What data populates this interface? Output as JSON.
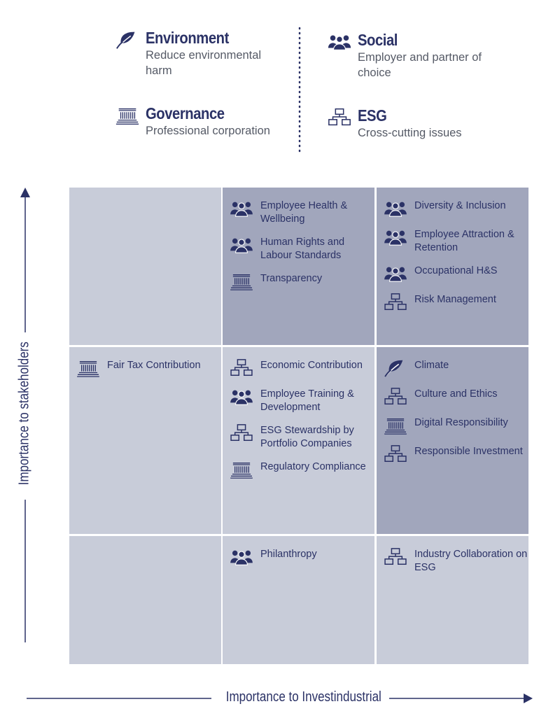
{
  "legend": [
    {
      "title": "Environment",
      "description": "Reduce environmental harm",
      "icon": "leaf"
    },
    {
      "title": "Social",
      "description": "Employer and partner of choice",
      "icon": "people"
    },
    {
      "title": "Governance",
      "description": "Professional corporation",
      "icon": "temple"
    },
    {
      "title": "ESG",
      "description": "Cross-cutting issues",
      "icon": "org"
    }
  ],
  "grid": {
    "rows": [
      [
        {
          "color": "#c8ccd9",
          "items": []
        },
        {
          "color": "#a1a6bc",
          "items": [
            {
              "label": "Employee Health & Wellbeing",
              "icon": "people"
            },
            {
              "label": "Human Rights and Labour Standards",
              "icon": "people"
            },
            {
              "label": "Transparency",
              "icon": "temple"
            }
          ]
        },
        {
          "color": "#a1a6bc",
          "items": [
            {
              "label": "Diversity & Inclusion",
              "icon": "people"
            },
            {
              "label": "Employee Attraction & Retention",
              "icon": "people"
            },
            {
              "label": "Occupational H&S",
              "icon": "people"
            },
            {
              "label": "Risk Management",
              "icon": "org"
            }
          ]
        }
      ],
      [
        {
          "color": "#c8ccd9",
          "items": [
            {
              "label": "Fair Tax Contribution",
              "icon": "temple"
            }
          ]
        },
        {
          "color": "#c8ccd9",
          "items": [
            {
              "label": "Economic Contribution",
              "icon": "org"
            },
            {
              "label": "Employee Training & Development",
              "icon": "people"
            },
            {
              "label": "ESG Stewardship by Portfolio Companies",
              "icon": "org"
            },
            {
              "label": "Regulatory Compliance",
              "icon": "temple"
            }
          ]
        },
        {
          "color": "#a1a6bc",
          "items": [
            {
              "label": "Climate",
              "icon": "leaf"
            },
            {
              "label": "Culture and Ethics",
              "icon": "org"
            },
            {
              "label": "Digital Responsibility",
              "icon": "temple"
            },
            {
              "label": "Responsible Investment",
              "icon": "org"
            }
          ]
        }
      ],
      [
        {
          "color": "#c8ccd9",
          "items": []
        },
        {
          "color": "#c8ccd9",
          "items": [
            {
              "label": "Philanthropy",
              "icon": "people"
            }
          ]
        },
        {
          "color": "#c8ccd9",
          "items": [
            {
              "label": "Industry Collaboration on ESG",
              "icon": "org"
            }
          ]
        }
      ]
    ]
  },
  "axes": {
    "y_label": "Importance to stakeholders",
    "x_label": "Importance to Investindustrial"
  }
}
